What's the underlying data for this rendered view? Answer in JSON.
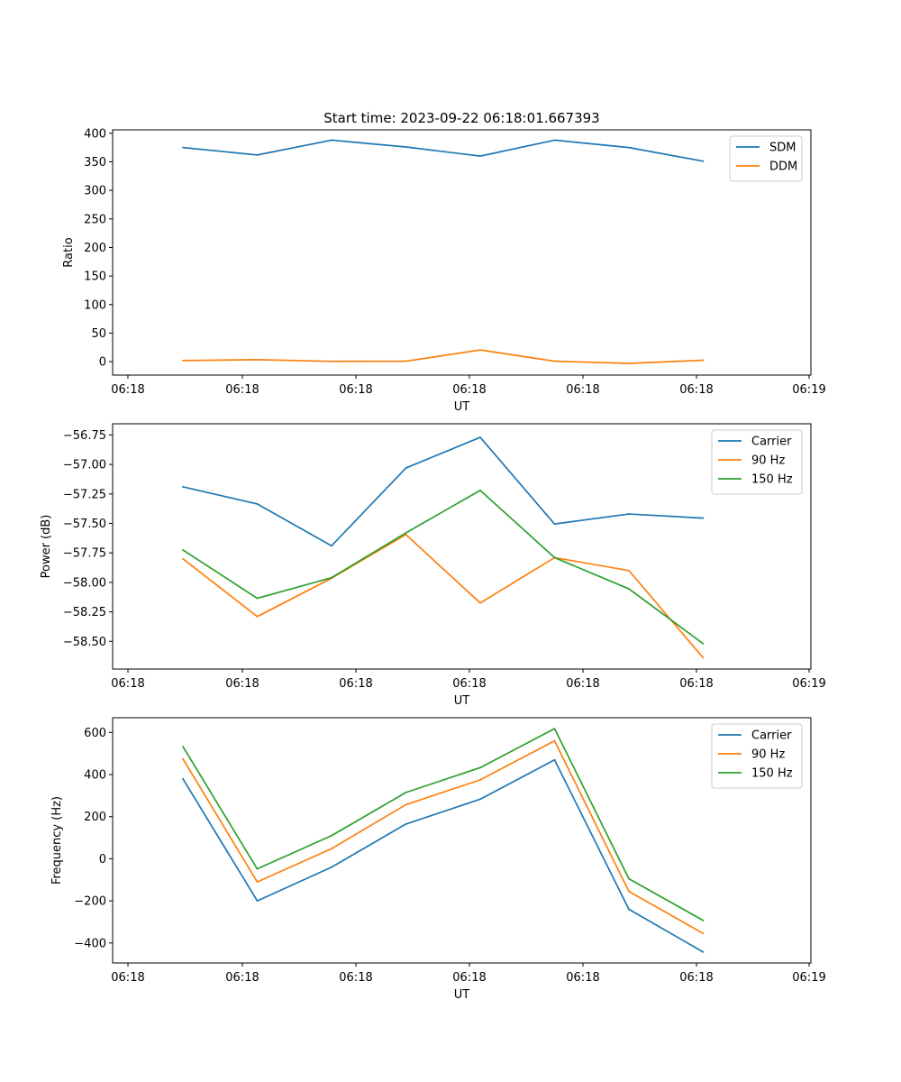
{
  "figure_title": "Start time: 2023-09-22 06:18:01.667393",
  "colors": {
    "c0": "#1f77b4",
    "c1": "#ff7f0e",
    "c2": "#2ca02c",
    "axis": "#000000",
    "legend_border": "#cccccc"
  },
  "chart_data": [
    {
      "type": "line",
      "title": "Start time: 2023-09-22 06:18:01.667393",
      "xlabel": "UT",
      "ylabel": "Ratio",
      "x_tick_labels": [
        "06:18",
        "06:18",
        "06:18",
        "06:18",
        "06:18",
        "06:18",
        "06:19"
      ],
      "y_ticks": [
        0,
        50,
        100,
        150,
        200,
        250,
        300,
        350,
        400
      ],
      "y_tick_labels": [
        "0",
        "50",
        "100",
        "150",
        "200",
        "250",
        "300",
        "350",
        "400"
      ],
      "ylim": [
        -23.5,
        406
      ],
      "grid": false,
      "legend_position": "upper right",
      "series": [
        {
          "name": "SDM",
          "color": "#1f77b4",
          "values": [
            375,
            362,
            388,
            376,
            360,
            388,
            375,
            351
          ]
        },
        {
          "name": "DDM",
          "color": "#ff7f0e",
          "values": [
            2,
            3.5,
            0.5,
            0.8,
            20.5,
            0.8,
            -3,
            2.5
          ]
        }
      ]
    },
    {
      "type": "line",
      "title": "",
      "xlabel": "UT",
      "ylabel": "Power (dB)",
      "x_tick_labels": [
        "06:18",
        "06:18",
        "06:18",
        "06:18",
        "06:18",
        "06:18",
        "06:19"
      ],
      "y_ticks": [
        -58.5,
        -58.25,
        -58.0,
        -57.75,
        -57.5,
        -57.25,
        -57.0,
        -56.75
      ],
      "y_tick_labels": [
        "−58.50",
        "−58.25",
        "−58.00",
        "−57.75",
        "−57.50",
        "−57.25",
        "−57.00",
        "−56.75"
      ],
      "ylim": [
        -58.735,
        -56.655
      ],
      "grid": false,
      "legend_position": "upper right",
      "series": [
        {
          "name": "Carrier",
          "color": "#1f77b4",
          "values": [
            -57.19,
            -57.335,
            -57.69,
            -57.03,
            -56.77,
            -57.505,
            -57.42,
            -57.455
          ]
        },
        {
          "name": "90 Hz",
          "color": "#ff7f0e",
          "values": [
            -57.8,
            -58.29,
            -57.965,
            -57.595,
            -58.175,
            -57.79,
            -57.9,
            -58.64
          ]
        },
        {
          "name": "150 Hz",
          "color": "#2ca02c",
          "values": [
            -57.725,
            -58.135,
            -57.96,
            -57.58,
            -57.22,
            -57.79,
            -58.055,
            -58.52
          ]
        }
      ]
    },
    {
      "type": "line",
      "title": "",
      "xlabel": "UT",
      "ylabel": "Frequency (Hz)",
      "x_tick_labels": [
        "06:18",
        "06:18",
        "06:18",
        "06:18",
        "06:18",
        "06:18",
        "06:19"
      ],
      "y_ticks": [
        -400,
        -200,
        0,
        200,
        400,
        600
      ],
      "y_tick_labels": [
        "−400",
        "−200",
        "0",
        "200",
        "400",
        "600"
      ],
      "ylim": [
        -495,
        670
      ],
      "grid": false,
      "legend_position": "upper right",
      "series": [
        {
          "name": "Carrier",
          "color": "#1f77b4",
          "values": [
            380,
            -200,
            -40,
            165,
            283,
            470,
            -240,
            -443
          ]
        },
        {
          "name": "90 Hz",
          "color": "#ff7f0e",
          "values": [
            475,
            -110,
            48,
            257,
            375,
            560,
            -155,
            -355
          ]
        },
        {
          "name": "150 Hz",
          "color": "#2ca02c",
          "values": [
            533,
            -48,
            110,
            315,
            433,
            618,
            -95,
            -293
          ]
        }
      ]
    }
  ]
}
